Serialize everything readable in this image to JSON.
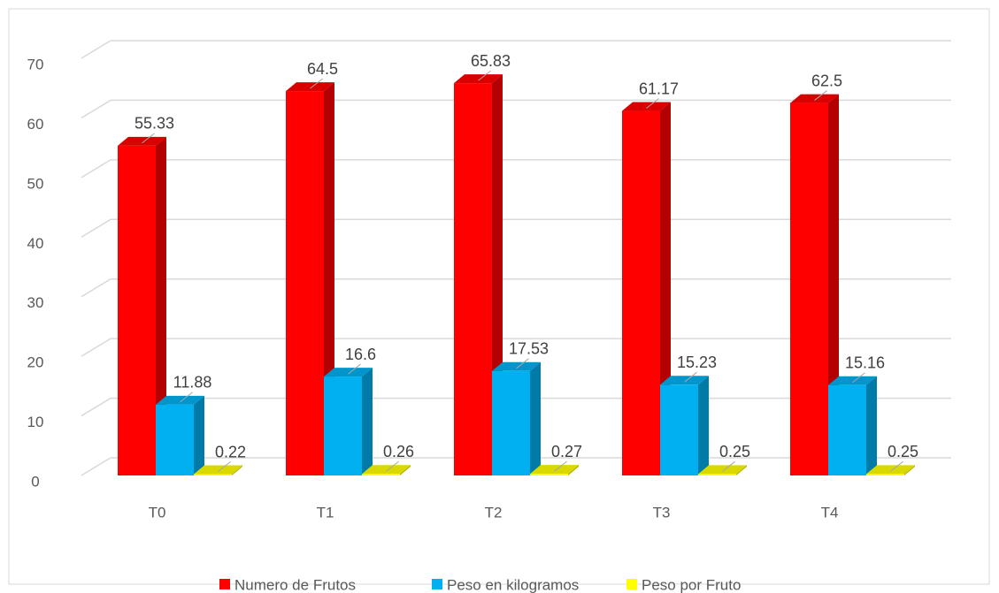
{
  "chart_data": {
    "type": "bar3d",
    "categories": [
      "T0",
      "T1",
      "T2",
      "T3",
      "T4"
    ],
    "series": [
      {
        "name": "Numero de Frutos",
        "color": "#ff0000",
        "values": [
          55.33,
          64.5,
          65.83,
          61.17,
          62.5
        ]
      },
      {
        "name": "Peso en kilogramos",
        "color": "#00b0f0",
        "values": [
          11.88,
          16.6,
          17.53,
          15.23,
          15.16
        ]
      },
      {
        "name": "Peso por Fruto",
        "color": "#ffff00",
        "values": [
          0.22,
          0.26,
          0.27,
          0.25,
          0.25
        ]
      }
    ],
    "ylim": [
      0,
      70
    ],
    "yticks": [
      0,
      10,
      20,
      30,
      40,
      50,
      60,
      70
    ],
    "grid": true,
    "legend": "bottom"
  }
}
